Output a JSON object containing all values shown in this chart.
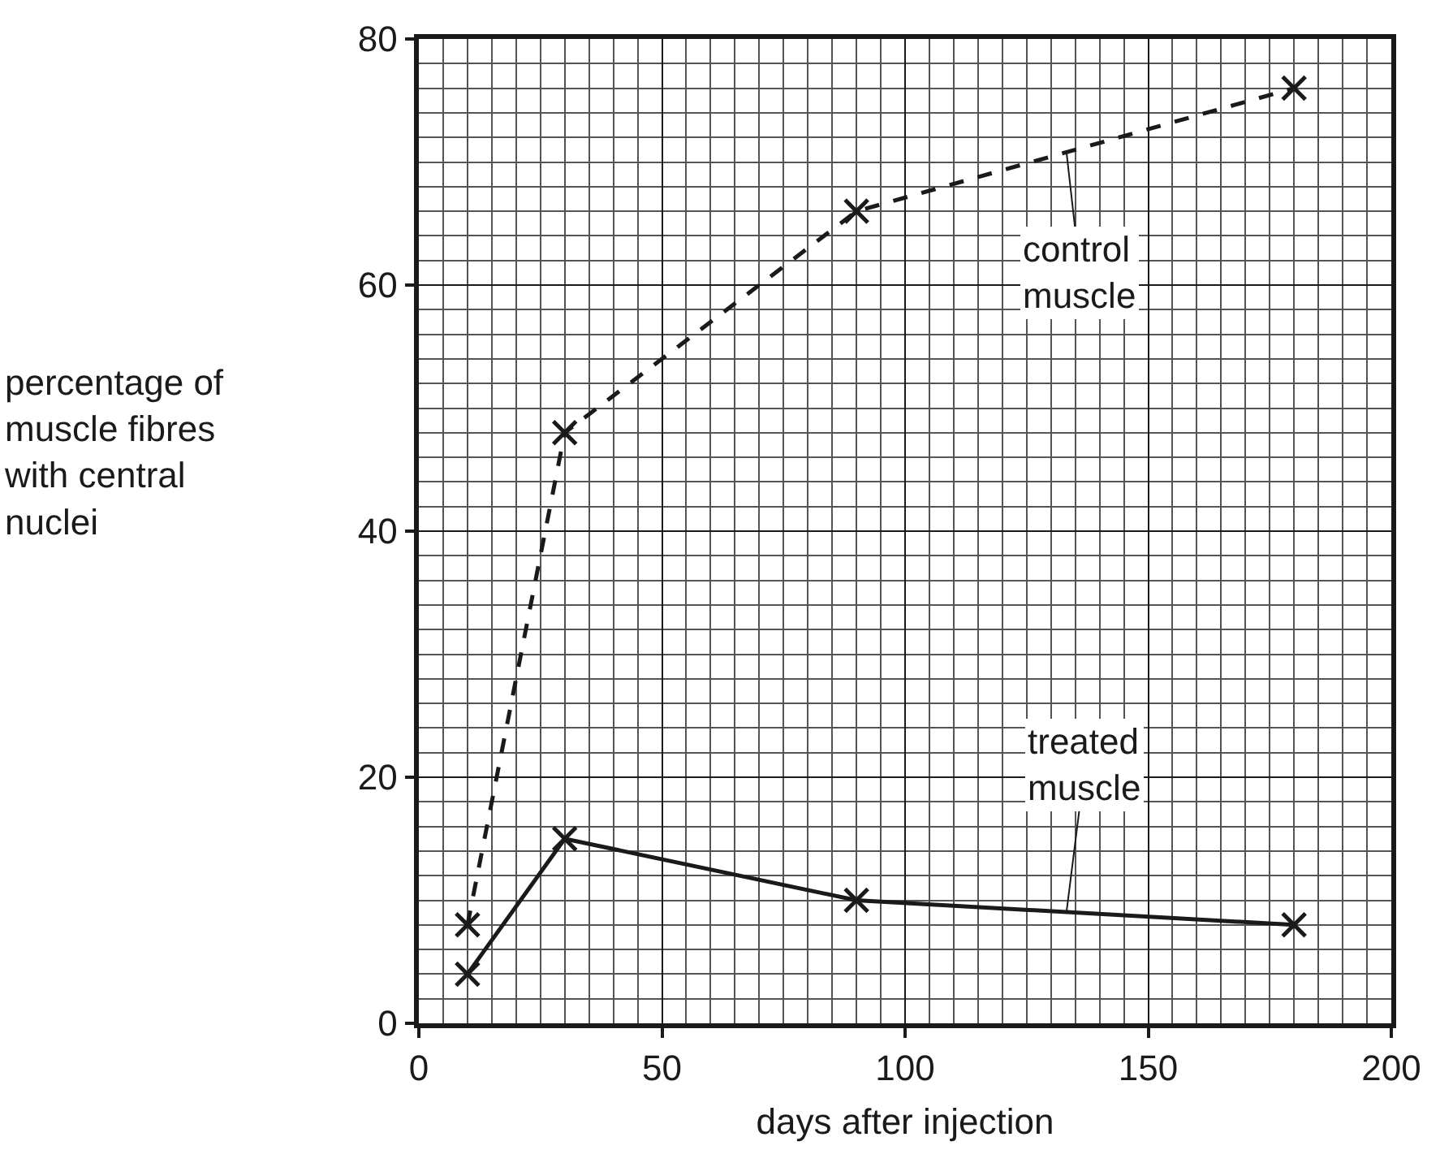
{
  "chart_data": {
    "type": "line",
    "xlabel": "days after injection",
    "ylabel": "percentage of\nmuscle fibres\nwith central\nnuclei",
    "x": [
      10,
      30,
      90,
      180
    ],
    "series": [
      {
        "name": "control\nmuscle",
        "color": "#1a1a1a",
        "values": [
          8,
          48,
          66,
          76
        ],
        "line_style": "dashed"
      },
      {
        "name": "treated\nmuscle",
        "color": "#1a1a1a",
        "values": [
          4,
          15,
          10,
          8
        ],
        "line_style": "solid"
      }
    ],
    "xlim": [
      0,
      200
    ],
    "xticks": [
      0,
      50,
      100,
      150,
      200
    ],
    "ylim": [
      0,
      80
    ],
    "yticks": [
      0,
      20,
      40,
      60,
      80
    ],
    "grid": true,
    "legend": "right",
    "marker": "cross"
  }
}
